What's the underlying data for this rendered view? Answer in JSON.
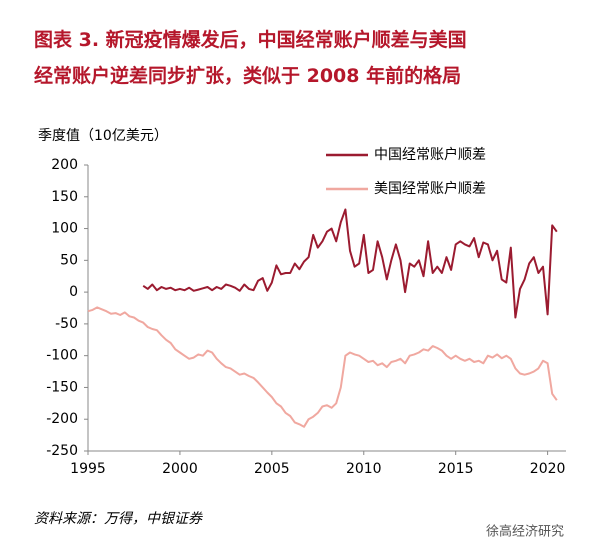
{
  "chart_data": {
    "type": "line",
    "title_lines": [
      "图表 3.  新冠疫情爆发后，中国经常账户顺差与美国",
      "经常账户逆差同步扩张，类似于 2008 年前的格局"
    ],
    "y_label": "季度值（10亿美元）",
    "source": "资料来源：万得，中银证券",
    "watermark": "徐高经济研究",
    "legend": "top-right",
    "grid": false,
    "xlim": [
      1995,
      2021
    ],
    "xticks": [
      1995,
      2000,
      2005,
      2010,
      2015,
      2020
    ],
    "ylim": [
      -250,
      200
    ],
    "yticks": [
      -250,
      -200,
      -150,
      -100,
      -50,
      0,
      50,
      100,
      150,
      200
    ],
    "x": [
      1995,
      1995.25,
      1995.5,
      1995.75,
      1996,
      1996.25,
      1996.5,
      1996.75,
      1997,
      1997.25,
      1997.5,
      1997.75,
      1998,
      1998.25,
      1998.5,
      1998.75,
      1999,
      1999.25,
      1999.5,
      1999.75,
      2000,
      2000.25,
      2000.5,
      2000.75,
      2001,
      2001.25,
      2001.5,
      2001.75,
      2002,
      2002.25,
      2002.5,
      2002.75,
      2003,
      2003.25,
      2003.5,
      2003.75,
      2004,
      2004.25,
      2004.5,
      2004.75,
      2005,
      2005.25,
      2005.5,
      2005.75,
      2006,
      2006.25,
      2006.5,
      2006.75,
      2007,
      2007.25,
      2007.5,
      2007.75,
      2008,
      2008.25,
      2008.5,
      2008.75,
      2009,
      2009.25,
      2009.5,
      2009.75,
      2010,
      2010.25,
      2010.5,
      2010.75,
      2011,
      2011.25,
      2011.5,
      2011.75,
      2012,
      2012.25,
      2012.5,
      2012.75,
      2013,
      2013.25,
      2013.5,
      2013.75,
      2014,
      2014.25,
      2014.5,
      2014.75,
      2015,
      2015.25,
      2015.5,
      2015.75,
      2016,
      2016.25,
      2016.5,
      2016.75,
      2017,
      2017.25,
      2017.5,
      2017.75,
      2018,
      2018.25,
      2018.5,
      2018.75,
      2019,
      2019.25,
      2019.5,
      2019.75,
      2020,
      2020.25,
      2020.5
    ],
    "series": [
      {
        "name": "中国经常账户顺差",
        "color": "#9b1b30",
        "values": [
          null,
          null,
          null,
          null,
          null,
          null,
          null,
          null,
          null,
          null,
          null,
          null,
          10,
          5,
          12,
          3,
          8,
          5,
          7,
          3,
          5,
          3,
          7,
          2,
          4,
          6,
          8,
          3,
          8,
          5,
          12,
          10,
          7,
          2,
          12,
          5,
          3,
          18,
          22,
          2,
          15,
          42,
          28,
          30,
          30,
          45,
          36,
          48,
          55,
          90,
          70,
          80,
          95,
          100,
          80,
          110,
          130,
          65,
          40,
          45,
          90,
          30,
          35,
          80,
          55,
          20,
          50,
          75,
          50,
          0,
          45,
          40,
          50,
          25,
          80,
          30,
          40,
          30,
          55,
          35,
          75,
          80,
          75,
          72,
          85,
          55,
          78,
          75,
          50,
          65,
          20,
          15,
          70,
          -40,
          5,
          20,
          45,
          55,
          30,
          40,
          -35,
          105,
          95
        ]
      },
      {
        "name": "美国经常账户顺差",
        "color": "#f0a8a0",
        "values": [
          -30,
          -28,
          -24,
          -27,
          -30,
          -34,
          -33,
          -36,
          -32,
          -38,
          -40,
          -45,
          -48,
          -55,
          -58,
          -60,
          -68,
          -75,
          -80,
          -90,
          -95,
          -100,
          -105,
          -103,
          -98,
          -100,
          -92,
          -95,
          -105,
          -112,
          -118,
          -120,
          -125,
          -130,
          -128,
          -132,
          -135,
          -142,
          -150,
          -158,
          -165,
          -175,
          -180,
          -190,
          -195,
          -205,
          -208,
          -212,
          -200,
          -196,
          -190,
          -180,
          -178,
          -182,
          -175,
          -150,
          -100,
          -95,
          -98,
          -100,
          -105,
          -110,
          -108,
          -115,
          -112,
          -118,
          -110,
          -108,
          -105,
          -112,
          -100,
          -98,
          -95,
          -90,
          -92,
          -85,
          -88,
          -92,
          -100,
          -105,
          -100,
          -105,
          -108,
          -105,
          -110,
          -108,
          -112,
          -100,
          -103,
          -98,
          -104,
          -100,
          -105,
          -120,
          -128,
          -130,
          -128,
          -125,
          -120,
          -108,
          -112,
          -160,
          -170
        ]
      }
    ]
  }
}
